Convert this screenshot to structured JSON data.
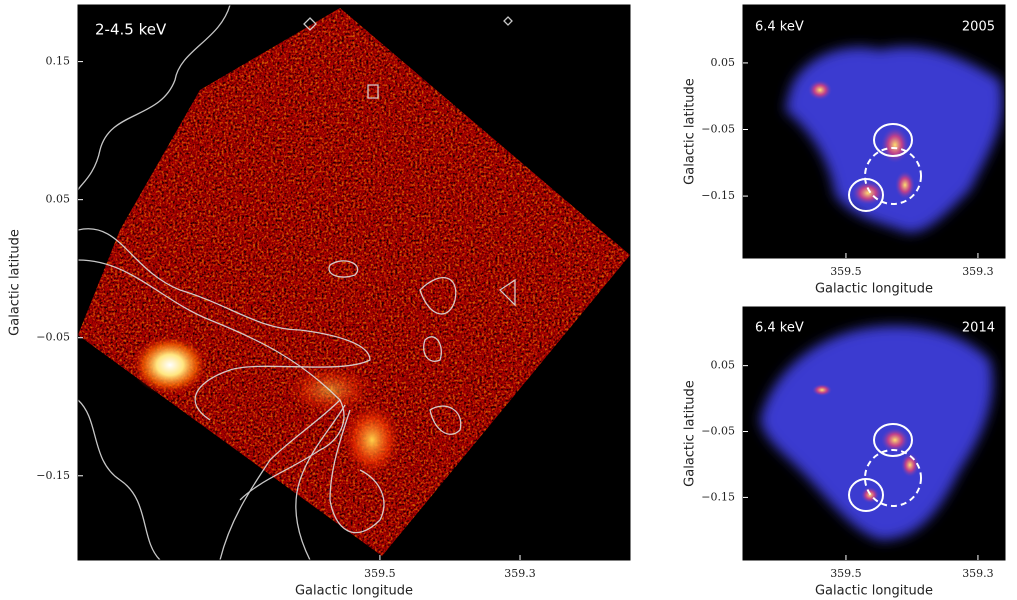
{
  "panels": [
    {
      "label": "2-4.5 keV",
      "xlabel": "Galactic longitude",
      "ylabel": "Galactic latitude",
      "xlim": [
        359.931,
        359.143
      ],
      "ylim": [
        -0.211,
        0.191
      ],
      "xticks": [
        359.5,
        359.3
      ],
      "yticks": [
        0.15,
        0.05,
        {
          "value": -0.05,
          "label": "−0.05"
        },
        {
          "value": -0.15,
          "label": "−0.15"
        }
      ]
    },
    {
      "label": "6.4 keV",
      "year": "2005",
      "xlabel": "Galactic longitude",
      "ylabel": "Galactic latitude",
      "xlim": [
        359.656,
        359.259
      ],
      "ylim": [
        -0.243,
        0.137
      ],
      "xticks": [
        359.5,
        359.3
      ],
      "yticks": [
        0.05,
        {
          "value": -0.05,
          "label": "−0.05"
        },
        {
          "value": -0.15,
          "label": "−0.15"
        }
      ]
    },
    {
      "label": "6.4 keV",
      "year": "2014",
      "xlabel": "Galactic longitude",
      "ylabel": "Galactic latitude",
      "xlim": [
        359.656,
        359.259
      ],
      "ylim": [
        -0.245,
        0.139
      ],
      "xticks": [
        359.5,
        359.3
      ],
      "yticks": [
        0.05,
        {
          "value": -0.05,
          "label": "−0.05"
        },
        {
          "value": -0.15,
          "label": "−0.15"
        }
      ]
    }
  ]
}
